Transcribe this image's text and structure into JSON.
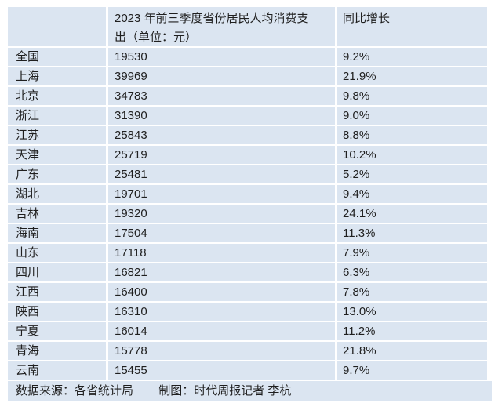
{
  "chart_data": {
    "type": "table",
    "title": "2023 年前三季度省份居民人均消费支出（单位：元）",
    "columns": [
      "",
      "2023 年前三季度省份居民人均消费支出（单位：元）",
      "同比增长"
    ],
    "rows": [
      [
        "全国",
        "19530",
        "9.2%"
      ],
      [
        "上海",
        "39969",
        "21.9%"
      ],
      [
        "北京",
        "34783",
        "9.8%"
      ],
      [
        "浙江",
        "31390",
        "9.0%"
      ],
      [
        "江苏",
        "25843",
        "8.8%"
      ],
      [
        "天津",
        "25719",
        "10.2%"
      ],
      [
        "广东",
        "25481",
        "5.2%"
      ],
      [
        "湖北",
        "19701",
        "9.4%"
      ],
      [
        "吉林",
        "19320",
        "24.1%"
      ],
      [
        "海南",
        "17504",
        "11.3%"
      ],
      [
        "山东",
        "17118",
        "7.9%"
      ],
      [
        "四川",
        "16821",
        "6.3%"
      ],
      [
        "江西",
        "16400",
        "7.8%"
      ],
      [
        "陕西",
        "16310",
        "13.0%"
      ],
      [
        "宁夏",
        "16014",
        "11.2%"
      ],
      [
        "青海",
        "15778",
        "21.8%"
      ],
      [
        "云南",
        "15455",
        "9.7%"
      ]
    ],
    "source_note": "数据来源：各省统计局",
    "credit_note": "制图：时代周报记者 李杭"
  },
  "colors": {
    "row_bg": "#dbe5f1",
    "grid_line": "#ffffff",
    "text": "#1f1f1f"
  }
}
